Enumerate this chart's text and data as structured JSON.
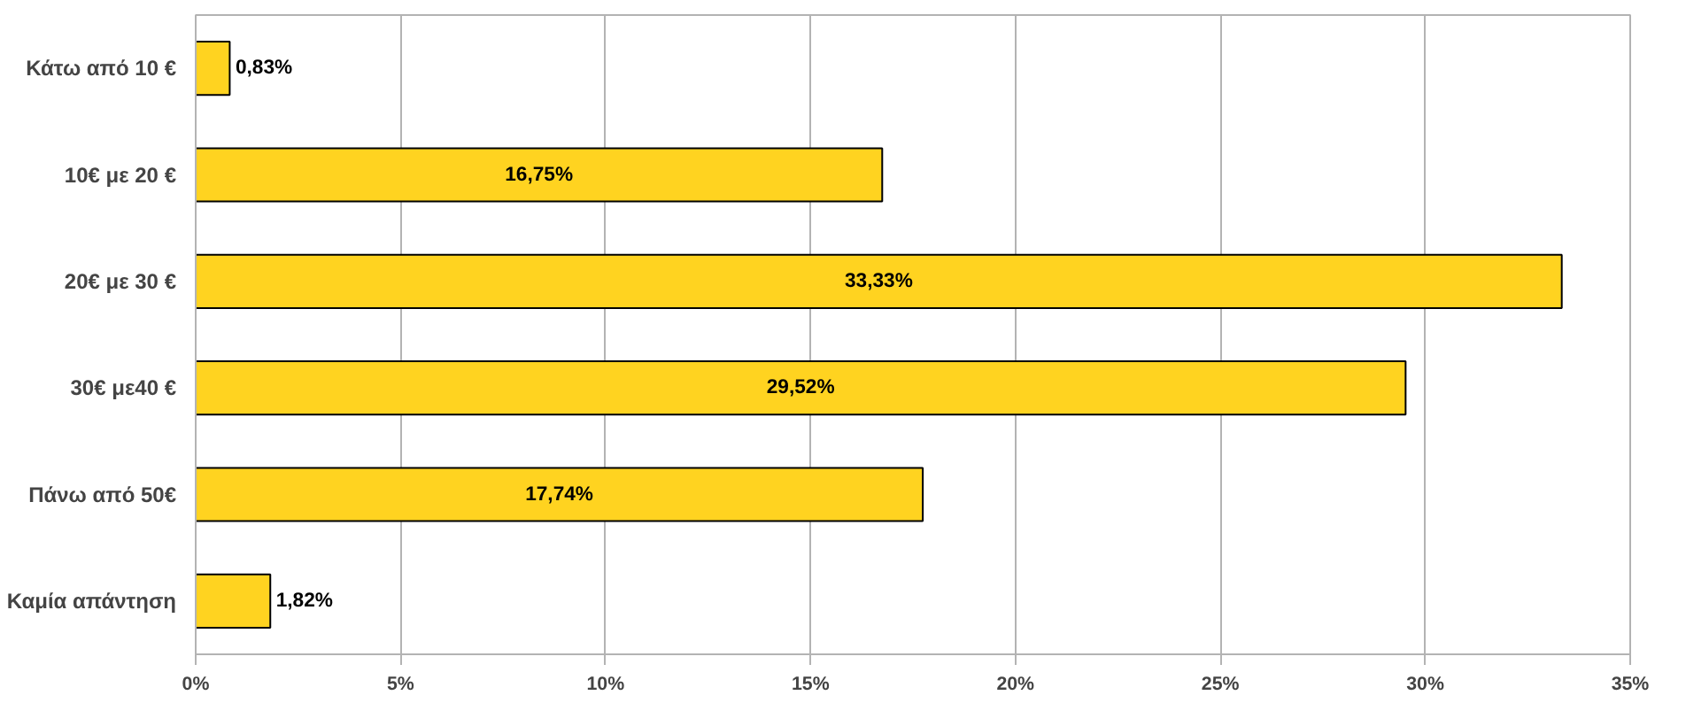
{
  "chart_data": {
    "type": "bar",
    "orientation": "horizontal",
    "categories": [
      "Κάτω από 10 €",
      "10€ με 20 €",
      "20€ με 30 €",
      "30€ με40 €",
      "Πάνω από 50€",
      "Καμία απάντηση"
    ],
    "values": [
      0.83,
      16.75,
      33.33,
      29.52,
      17.74,
      1.82
    ],
    "value_labels": [
      "0,83%",
      "16,75%",
      "33,33%",
      "29,52%",
      "17,74%",
      "1,82%"
    ],
    "color": "#ffd320",
    "xlim": [
      0,
      35
    ],
    "xticks": [
      {
        "value": 0,
        "label": "0%"
      },
      {
        "value": 5,
        "label": "5%"
      },
      {
        "value": 10,
        "label": "10%"
      },
      {
        "value": 15,
        "label": "15%"
      },
      {
        "value": 20,
        "label": "20%"
      },
      {
        "value": 25,
        "label": "25%"
      },
      {
        "value": 30,
        "label": "30%"
      },
      {
        "value": 35,
        "label": "35%"
      }
    ],
    "grid": "x"
  }
}
